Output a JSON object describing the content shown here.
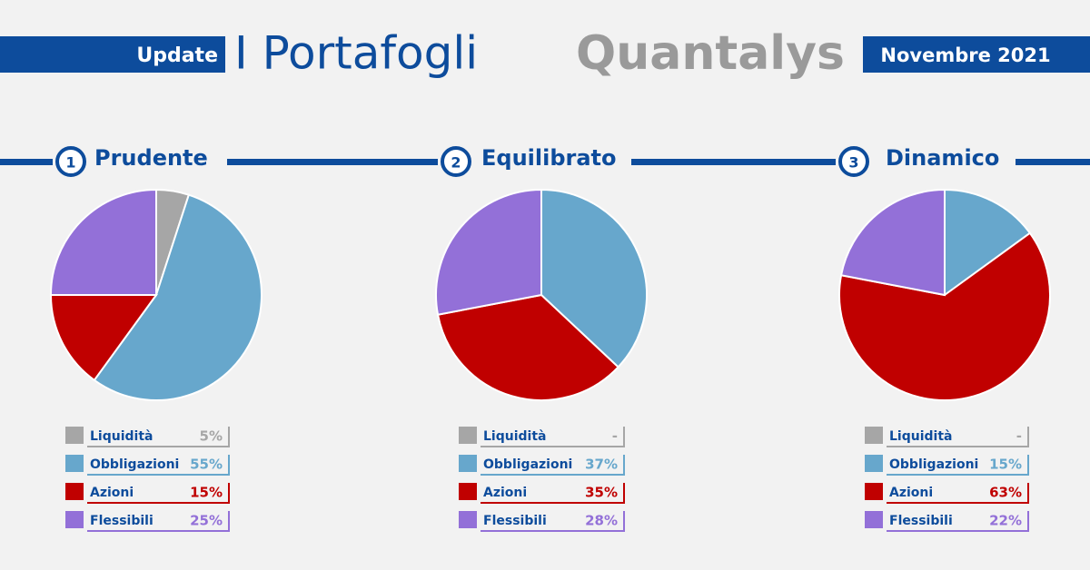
{
  "header": {
    "update": "Update",
    "title": "I Portafogli",
    "brand": "Quantalys",
    "date": "Novembre 2021"
  },
  "chart_data": [
    {
      "type": "pie",
      "number": "1",
      "title": "Prudente",
      "categories": [
        "Liquidità",
        "Obbligazioni",
        "Azioni",
        "Flessibili"
      ],
      "values": [
        5,
        55,
        15,
        25
      ],
      "value_labels": [
        "5%",
        "55%",
        "15%",
        "25%"
      ],
      "colors": [
        "#a6a6a6",
        "#67a7cc",
        "#c00000",
        "#9370d8"
      ]
    },
    {
      "type": "pie",
      "number": "2",
      "title": "Equilibrato",
      "categories": [
        "Liquidità",
        "Obbligazioni",
        "Azioni",
        "Flessibili"
      ],
      "values": [
        null,
        37,
        35,
        28
      ],
      "value_labels": [
        "-",
        "37%",
        "35%",
        "28%"
      ],
      "colors": [
        "#a6a6a6",
        "#67a7cc",
        "#c00000",
        "#9370d8"
      ]
    },
    {
      "type": "pie",
      "number": "3",
      "title": "Dinamico",
      "categories": [
        "Liquidità",
        "Obbligazioni",
        "Azioni",
        "Flessibili"
      ],
      "values": [
        null,
        15,
        63,
        22
      ],
      "value_labels": [
        "-",
        "15%",
        "63%",
        "22%"
      ],
      "colors": [
        "#a6a6a6",
        "#67a7cc",
        "#c00000",
        "#9370d8"
      ]
    }
  ]
}
